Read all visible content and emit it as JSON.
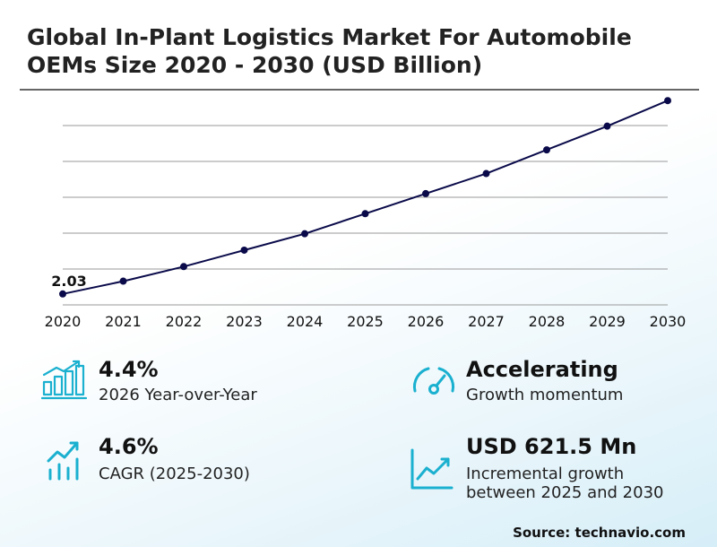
{
  "title": "Global In-Plant Logistics Market For Automobile OEMs Size 2020 - 2030 (USD Billion)",
  "chart_data": {
    "type": "line",
    "x": [
      "2020",
      "2021",
      "2022",
      "2023",
      "2024",
      "2025",
      "2026",
      "2027",
      "2028",
      "2029",
      "2030"
    ],
    "series": [
      {
        "values": [
          2.03,
          2.1,
          2.18,
          2.27,
          2.36,
          2.47,
          2.58,
          2.69,
          2.82,
          2.95,
          3.09
        ]
      }
    ],
    "annotations": [
      {
        "x": "2020",
        "text": "2.03"
      }
    ],
    "ylim": [
      1.97,
      3.15
    ],
    "grid": true,
    "line_color": "#0a0a4a",
    "grid_color": "#999999"
  },
  "kpis": {
    "yoy": {
      "value": "4.4%",
      "label": "2026 Year-over-Year",
      "icon": "bar-chart-growth-icon"
    },
    "momentum": {
      "value": "Accelerating",
      "label": "Growth momentum",
      "icon": "speedometer-icon"
    },
    "cagr": {
      "value": "4.6%",
      "label": "CAGR (2025-2030)",
      "icon": "trend-bars-icon"
    },
    "incremental": {
      "value": "USD 621.5 Mn",
      "label": "Incremental growth between 2025 and 2030",
      "icon": "line-chart-icon"
    }
  },
  "accent_color": "#1ab0cf",
  "source": "Source: technavio.com"
}
